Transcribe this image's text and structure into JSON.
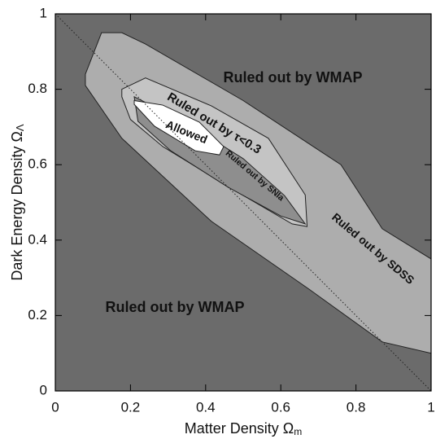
{
  "chart_data": {
    "type": "contour",
    "xlabel": "Matter Density Ω",
    "xlabel_sub": "m",
    "ylabel": "Dark Energy Density Ω",
    "ylabel_sub": "Λ",
    "xlim": [
      0,
      1
    ],
    "ylim": [
      0,
      1
    ],
    "xticks": [
      0,
      0.2,
      0.4,
      0.6,
      0.8,
      1
    ],
    "yticks": [
      0,
      0.2,
      0.4,
      0.6,
      0.8,
      1
    ],
    "background_color": "#6b6b6b",
    "regions": [
      {
        "color": "#adadad",
        "x": [
          0.123,
          0.177,
          0.24,
          0.5,
          0.76,
          0.87,
          1,
          1,
          0.87,
          0.675,
          0.415,
          0.177,
          0.08,
          0.08
        ],
        "y": [
          0.95,
          0.95,
          0.92,
          0.77,
          0.6,
          0.43,
          0.35,
          0.1,
          0.13,
          0.27,
          0.45,
          0.67,
          0.81,
          0.84
        ]
      },
      {
        "color": "#c4c4c4",
        "x": [
          0.177,
          0.24,
          0.415,
          0.567,
          0.665,
          0.67,
          0.63,
          0.48,
          0.286,
          0.2,
          0.177
        ],
        "y": [
          0.8,
          0.83,
          0.756,
          0.67,
          0.52,
          0.436,
          0.443,
          0.53,
          0.648,
          0.72,
          0.78
        ]
      },
      {
        "color": "#8e8e8e",
        "x": [
          0.21,
          0.35,
          0.5,
          0.61,
          0.665,
          0.6,
          0.46,
          0.307,
          0.22
        ],
        "y": [
          0.78,
          0.71,
          0.616,
          0.518,
          0.443,
          0.464,
          0.54,
          0.637,
          0.715
        ]
      },
      {
        "color": "#ffffff",
        "x": [
          0.21,
          0.286,
          0.383,
          0.448,
          0.437,
          0.372,
          0.264,
          0.21
        ],
        "y": [
          0.77,
          0.758,
          0.713,
          0.648,
          0.626,
          0.637,
          0.702,
          0.76
        ]
      }
    ],
    "flat_line": {
      "x": [
        0,
        1
      ],
      "y": [
        1,
        0
      ]
    },
    "annotations": [
      "Ruled out by WMAP",
      "Ruled out by WMAP",
      "Ruled out by τ<0.3",
      "Allowed",
      "Ruled out by SNIa",
      "Ruled out by SDSS"
    ]
  }
}
